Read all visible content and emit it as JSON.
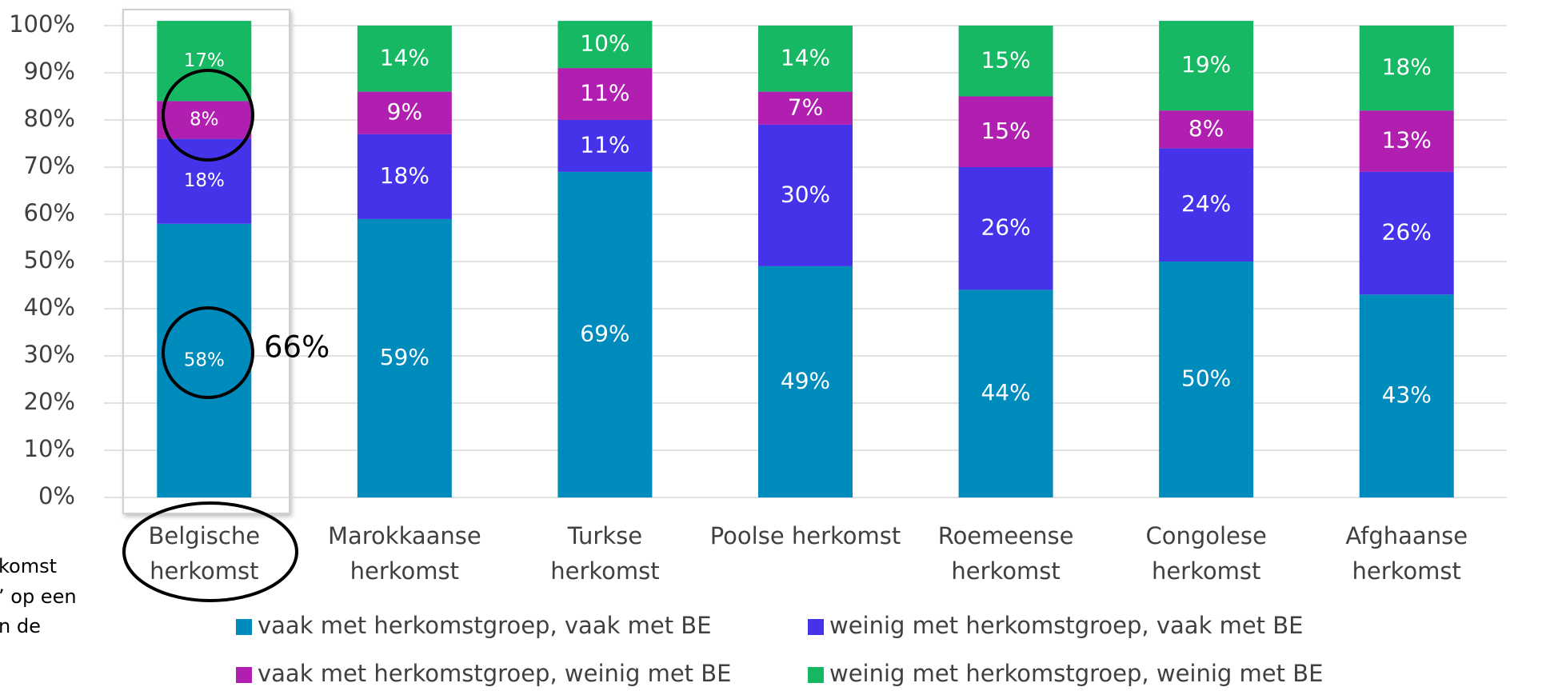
{
  "chart_data": {
    "type": "stacked_bar",
    "categories": [
      "Belgische\nherkomst",
      "Marokkaanse\nherkomst",
      "Turkse\nherkomst",
      "Poolse herkomst",
      "Roemeense\nherkomst",
      "Congolese\nherkomst",
      "Afghaanse\nherkomst"
    ],
    "series": [
      {
        "name": "vaak met herkomstgroep, vaak met BE",
        "color": "#008bbd",
        "values": [
          58,
          59,
          69,
          49,
          44,
          50,
          43
        ],
        "value_labels": [
          "58%",
          "59%",
          "69%",
          "49%",
          "44%",
          "50%",
          "43%"
        ]
      },
      {
        "name": "weinig met herkomstgroep, vaak met BE",
        "color": "#4433e8",
        "values": [
          18,
          18,
          11,
          30,
          26,
          24,
          26
        ],
        "value_labels": [
          "18%",
          "18%",
          "11%",
          "30%",
          "26%",
          "24%",
          "26%"
        ]
      },
      {
        "name": "vaak met herkomstgroep, weinig met BE",
        "color": "#b11fb0",
        "values": [
          8,
          9,
          11,
          7,
          15,
          8,
          13
        ],
        "value_labels": [
          "8%",
          "9%",
          "11%",
          "7%",
          "15%",
          "8%",
          "13%"
        ]
      },
      {
        "name": "weinig met herkomstgroep, weinig met BE",
        "color": "#16b864",
        "values": [
          17,
          14,
          10,
          14,
          15,
          19,
          18
        ],
        "value_labels": [
          "17%",
          "14%",
          "10%",
          "14%",
          "15%",
          "19%",
          "18%"
        ]
      }
    ],
    "ylim": [
      0,
      100
    ],
    "yticks": [
      {
        "value": 0,
        "label": "0%"
      },
      {
        "value": 10,
        "label": "10%"
      },
      {
        "value": 20,
        "label": "20%"
      },
      {
        "value": 30,
        "label": "30%"
      },
      {
        "value": 40,
        "label": "40%"
      },
      {
        "value": 50,
        "label": "50%"
      },
      {
        "value": 60,
        "label": "60%"
      },
      {
        "value": 70,
        "label": "70%"
      },
      {
        "value": 80,
        "label": "80%"
      },
      {
        "value": 90,
        "label": "90%"
      },
      {
        "value": 100,
        "label": "100%"
      }
    ],
    "grid": true,
    "annotations": [
      "66%",
      "komst",
      "’ op een",
      "n de"
    ]
  }
}
